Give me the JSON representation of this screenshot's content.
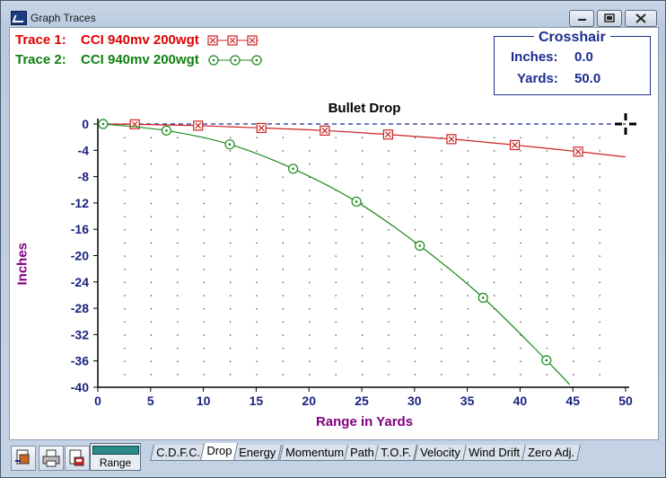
{
  "window": {
    "title": "Graph Traces",
    "buttons": [
      "minimize",
      "restore",
      "close"
    ]
  },
  "traces": [
    {
      "label": "Trace 1:",
      "text": "CCI  940mv 200wgt",
      "color": "#e00000",
      "marker": "boxed-x"
    },
    {
      "label": "Trace 2:",
      "text": "CCI  940mv 200wgt",
      "color": "#108010",
      "marker": "circled-dot"
    }
  ],
  "crosshair": {
    "title": "Crosshair",
    "inches_label": "Inches:",
    "inches_value": "0.0",
    "yards_label": "Yards:",
    "yards_value": "50.0"
  },
  "chart_data": {
    "type": "line",
    "title": "Bullet Drop",
    "xlabel": "Range in Yards",
    "ylabel": "Inches",
    "xlim": [
      0,
      50
    ],
    "ylim": [
      -40,
      0
    ],
    "xticks": [
      0,
      5,
      10,
      15,
      20,
      25,
      30,
      35,
      40,
      45,
      50
    ],
    "yticks": [
      0,
      -4,
      -8,
      -12,
      -16,
      -20,
      -24,
      -28,
      -32,
      -36,
      -40
    ],
    "grid": "dotted",
    "reference_line": {
      "y": 0,
      "style": "dashed",
      "color": "#1a2d8f"
    },
    "series": [
      {
        "name": "Trace 1",
        "color": "#cc2222",
        "x": [
          0,
          3.5,
          9.5,
          15.5,
          21.5,
          27.5,
          33.5,
          39.5,
          45.5,
          50
        ],
        "y": [
          0,
          -0.05,
          -0.25,
          -0.6,
          -1.0,
          -1.6,
          -2.3,
          -3.2,
          -4.2,
          -5.0
        ],
        "markers_at": [
          3.5,
          9.5,
          15.5,
          21.5,
          27.5,
          33.5,
          39.5,
          45.5
        ]
      },
      {
        "name": "Trace 2",
        "color": "#1c8a1c",
        "x": [
          0.5,
          6.5,
          12.5,
          18.5,
          24.5,
          30.5,
          36.5,
          42.5,
          44.7
        ],
        "y": [
          0,
          -1.0,
          -3.1,
          -6.8,
          -11.8,
          -18.5,
          -26.4,
          -35.9,
          -39.6
        ],
        "markers_at": [
          0.5,
          6.5,
          12.5,
          18.5,
          24.5,
          30.5,
          36.5,
          42.5
        ]
      }
    ],
    "crosshair_marker": {
      "x": 50,
      "y": 0
    }
  },
  "toolbar": {
    "range_label": "Range"
  },
  "tabs": [
    {
      "label": "C.D.F.C.",
      "active": false
    },
    {
      "label": "Drop",
      "active": true
    },
    {
      "label": "Energy",
      "active": false
    },
    {
      "label": "Momentum",
      "active": false
    },
    {
      "label": "Path",
      "active": false
    },
    {
      "label": "T.O.F.",
      "active": false
    },
    {
      "label": "Velocity",
      "active": false
    },
    {
      "label": "Wind Drift",
      "active": false
    },
    {
      "label": "Zero Adj.",
      "active": false
    }
  ]
}
